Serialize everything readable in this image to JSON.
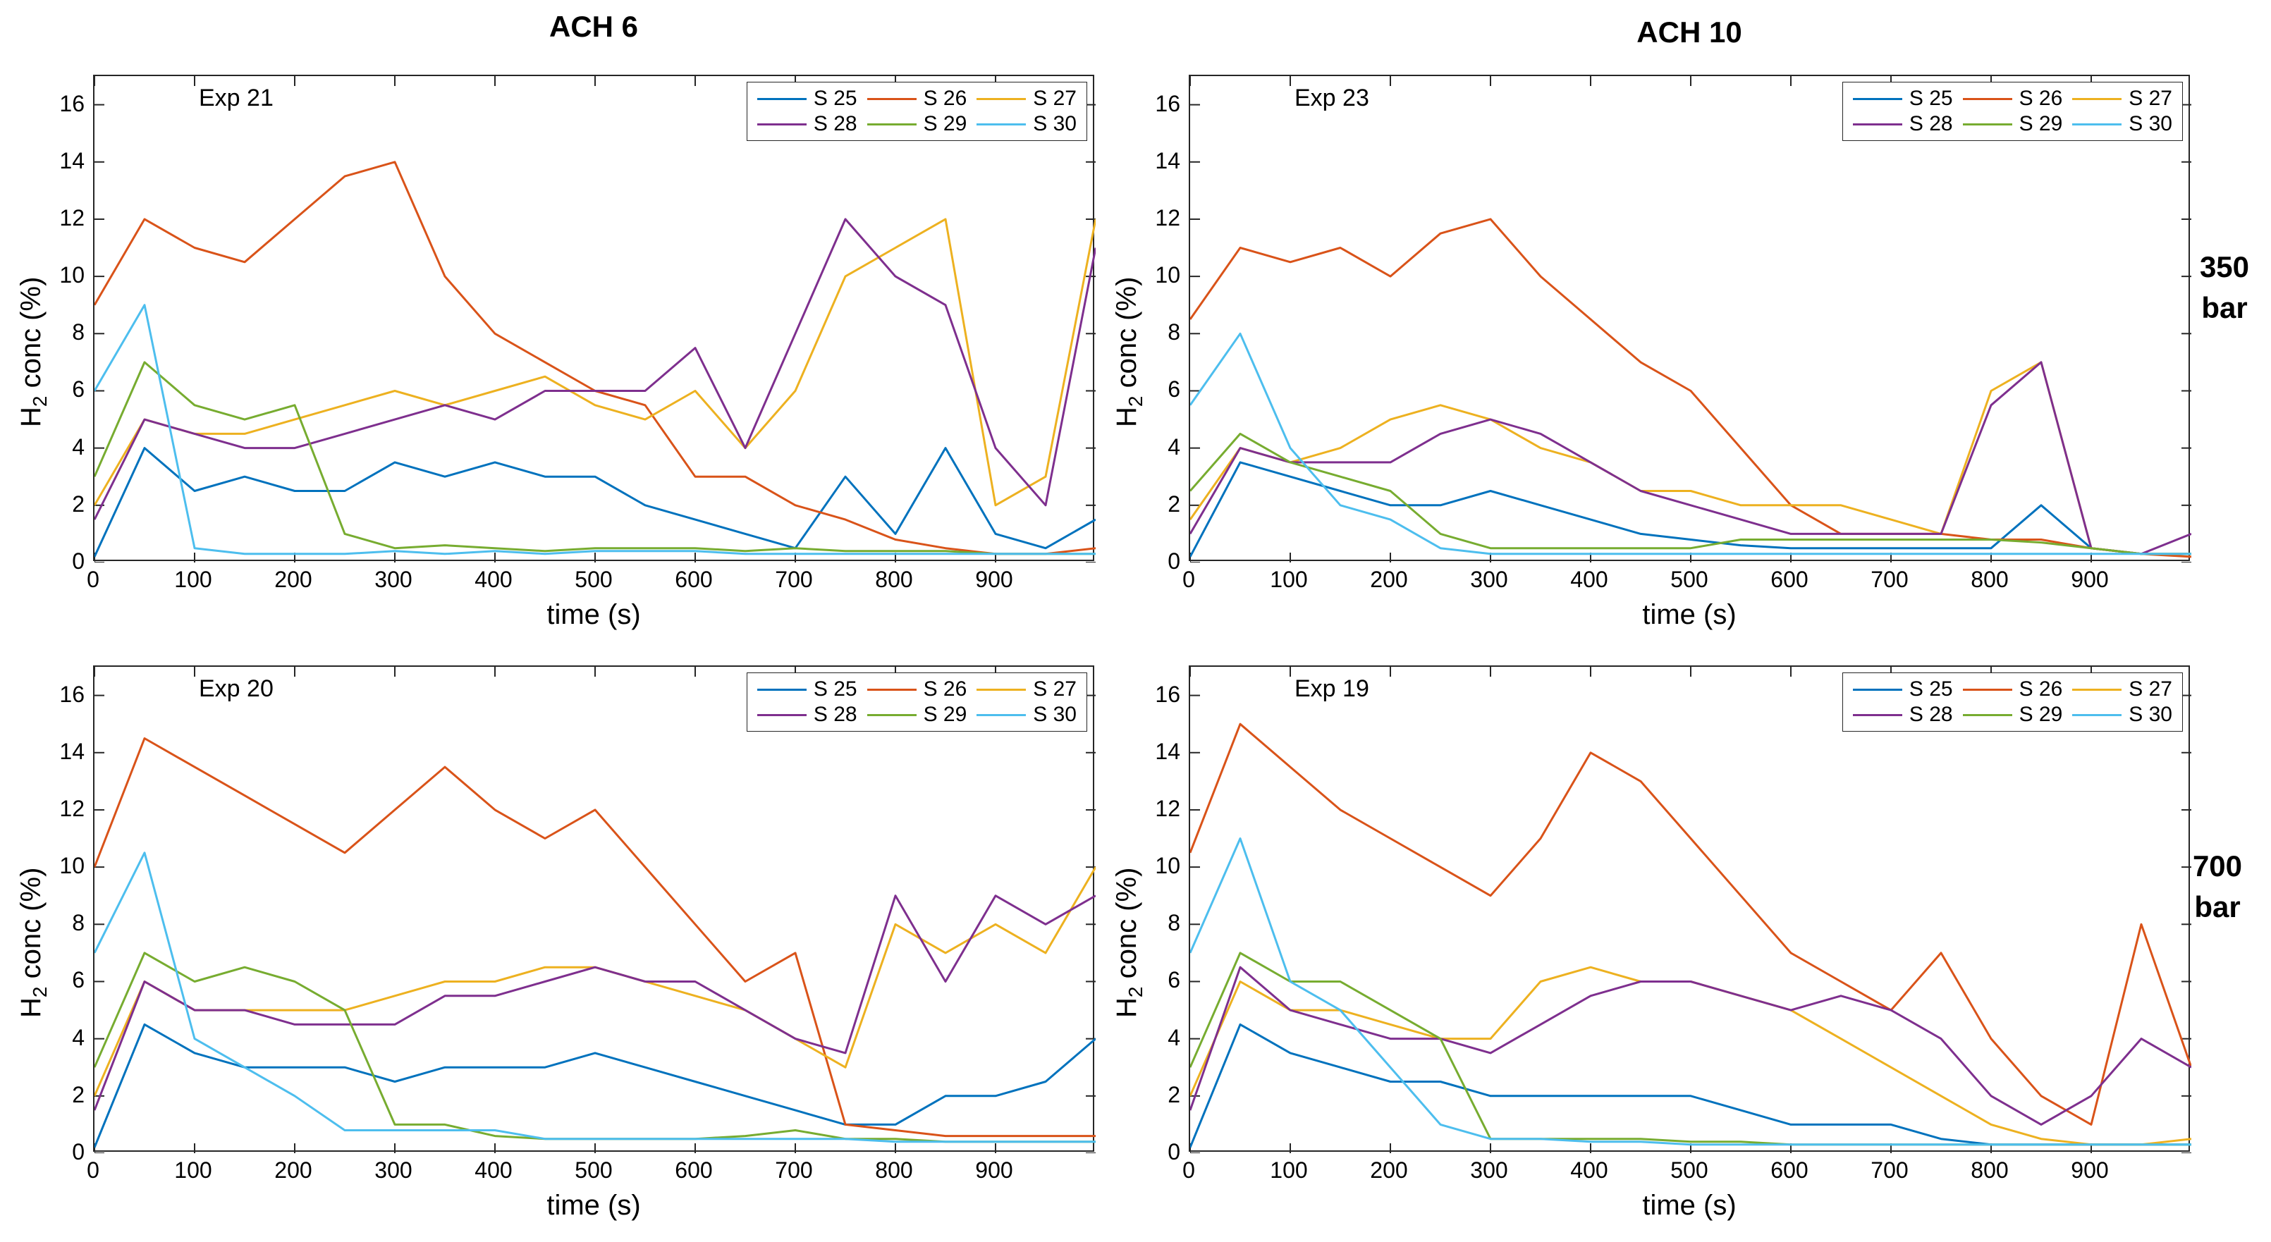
{
  "column_titles": [
    "ACH 6",
    "ACH 10"
  ],
  "row_titles": [
    [
      "350",
      "bar"
    ],
    [
      "700",
      "bar"
    ]
  ],
  "x_ticks": [
    "0",
    "100",
    "200",
    "300",
    "400",
    "500",
    "600",
    "700",
    "800",
    "900"
  ],
  "y_ticks": [
    "0",
    "2",
    "4",
    "6",
    "8",
    "10",
    "12",
    "14",
    "16"
  ],
  "xlabel": "time (s)",
  "ylabel_main": "H",
  "ylabel_sub": "2",
  "ylabel_rest": " conc (%)",
  "series_colors": {
    "S 25": "#0072BD",
    "S 26": "#D95319",
    "S 27": "#EDB120",
    "S 28": "#7E2F8E",
    "S 29": "#77AC30",
    "S 30": "#4DBEEE"
  },
  "chart_data": [
    {
      "type": "line",
      "panel": "top-left",
      "annotation": "Exp 21",
      "xlabel": "time (s)",
      "ylabel": "H2 conc (%)",
      "xlim": [
        0,
        1000
      ],
      "ylim": [
        0,
        17
      ],
      "legend": "top-right",
      "grid": false,
      "x": [
        0,
        50,
        100,
        150,
        200,
        250,
        300,
        350,
        400,
        450,
        500,
        550,
        600,
        650,
        700,
        750,
        800,
        850,
        900,
        950,
        1000
      ],
      "series": [
        {
          "name": "S 25",
          "values": [
            0.2,
            4.0,
            2.5,
            3.0,
            2.5,
            2.5,
            3.5,
            3.0,
            3.5,
            3.0,
            3.0,
            2.0,
            1.5,
            1.0,
            0.5,
            3.0,
            1.0,
            4.0,
            1.0,
            0.5,
            1.5
          ]
        },
        {
          "name": "S 26",
          "values": [
            9.0,
            12.0,
            11.0,
            10.5,
            12.0,
            13.5,
            14.0,
            10.0,
            8.0,
            7.0,
            6.0,
            5.5,
            3.0,
            3.0,
            2.0,
            1.5,
            0.8,
            0.5,
            0.3,
            0.3,
            0.5
          ]
        },
        {
          "name": "S 27",
          "values": [
            2.0,
            5.0,
            4.5,
            4.5,
            5.0,
            5.5,
            6.0,
            5.5,
            6.0,
            6.5,
            5.5,
            5.0,
            6.0,
            4.0,
            6.0,
            10.0,
            11.0,
            12.0,
            2.0,
            3.0,
            12.0
          ]
        },
        {
          "name": "S 28",
          "values": [
            1.5,
            5.0,
            4.5,
            4.0,
            4.0,
            4.5,
            5.0,
            5.5,
            5.0,
            6.0,
            6.0,
            6.0,
            7.5,
            4.0,
            8.0,
            12.0,
            10.0,
            9.0,
            4.0,
            2.0,
            11.0
          ]
        },
        {
          "name": "S 29",
          "values": [
            3.0,
            7.0,
            5.5,
            5.0,
            5.5,
            1.0,
            0.5,
            0.6,
            0.5,
            0.4,
            0.5,
            0.5,
            0.5,
            0.4,
            0.5,
            0.4,
            0.4,
            0.4,
            0.3,
            0.3,
            0.3
          ]
        },
        {
          "name": "S 30",
          "values": [
            6.0,
            9.0,
            0.5,
            0.3,
            0.3,
            0.3,
            0.4,
            0.3,
            0.4,
            0.3,
            0.4,
            0.4,
            0.4,
            0.3,
            0.3,
            0.3,
            0.3,
            0.3,
            0.3,
            0.3,
            0.3
          ]
        }
      ]
    },
    {
      "type": "line",
      "panel": "top-right",
      "annotation": "Exp 23",
      "xlabel": "time (s)",
      "ylabel": "H2 conc (%)",
      "xlim": [
        0,
        1000
      ],
      "ylim": [
        0,
        17
      ],
      "legend": "top-right",
      "grid": false,
      "x": [
        0,
        50,
        100,
        150,
        200,
        250,
        300,
        350,
        400,
        450,
        500,
        550,
        600,
        650,
        700,
        750,
        800,
        850,
        900,
        950,
        1000
      ],
      "series": [
        {
          "name": "S 25",
          "values": [
            0.2,
            3.5,
            3.0,
            2.5,
            2.0,
            2.0,
            2.5,
            2.0,
            1.5,
            1.0,
            0.8,
            0.6,
            0.5,
            0.5,
            0.5,
            0.5,
            0.5,
            2.0,
            0.5,
            0.3,
            0.3
          ]
        },
        {
          "name": "S 26",
          "values": [
            8.5,
            11.0,
            10.5,
            11.0,
            10.0,
            11.5,
            12.0,
            10.0,
            8.5,
            7.0,
            6.0,
            4.0,
            2.0,
            1.0,
            1.0,
            1.0,
            0.8,
            0.8,
            0.5,
            0.3,
            0.2
          ]
        },
        {
          "name": "S 27",
          "values": [
            1.5,
            4.0,
            3.5,
            4.0,
            5.0,
            5.5,
            5.0,
            4.0,
            3.5,
            2.5,
            2.5,
            2.0,
            2.0,
            2.0,
            1.5,
            1.0,
            6.0,
            7.0,
            0.5,
            0.3,
            0.3
          ]
        },
        {
          "name": "S 28",
          "values": [
            1.0,
            4.0,
            3.5,
            3.5,
            3.5,
            4.5,
            5.0,
            4.5,
            3.5,
            2.5,
            2.0,
            1.5,
            1.0,
            1.0,
            1.0,
            1.0,
            5.5,
            7.0,
            0.5,
            0.3,
            1.0
          ]
        },
        {
          "name": "S 29",
          "values": [
            2.5,
            4.5,
            3.5,
            3.0,
            2.5,
            1.0,
            0.5,
            0.5,
            0.5,
            0.5,
            0.5,
            0.8,
            0.8,
            0.8,
            0.8,
            0.8,
            0.8,
            0.7,
            0.5,
            0.3,
            0.3
          ]
        },
        {
          "name": "S 30",
          "values": [
            5.5,
            8.0,
            4.0,
            2.0,
            1.5,
            0.5,
            0.3,
            0.3,
            0.3,
            0.3,
            0.3,
            0.3,
            0.3,
            0.3,
            0.3,
            0.3,
            0.3,
            0.3,
            0.3,
            0.3,
            0.3
          ]
        }
      ]
    },
    {
      "type": "line",
      "panel": "bottom-left",
      "annotation": "Exp 20",
      "xlabel": "time (s)",
      "ylabel": "H2 conc (%)",
      "xlim": [
        0,
        1000
      ],
      "ylim": [
        0,
        17
      ],
      "legend": "top-right",
      "grid": false,
      "x": [
        0,
        50,
        100,
        150,
        200,
        250,
        300,
        350,
        400,
        450,
        500,
        550,
        600,
        650,
        700,
        750,
        800,
        850,
        900,
        950,
        1000
      ],
      "series": [
        {
          "name": "S 25",
          "values": [
            0.2,
            4.5,
            3.5,
            3.0,
            3.0,
            3.0,
            2.5,
            3.0,
            3.0,
            3.0,
            3.5,
            3.0,
            2.5,
            2.0,
            1.5,
            1.0,
            1.0,
            2.0,
            2.0,
            2.5,
            4.0
          ]
        },
        {
          "name": "S 26",
          "values": [
            10.0,
            14.5,
            13.5,
            12.5,
            11.5,
            10.5,
            12.0,
            13.5,
            12.0,
            11.0,
            12.0,
            10.0,
            8.0,
            6.0,
            7.0,
            1.0,
            0.8,
            0.6,
            0.6,
            0.6,
            0.6
          ]
        },
        {
          "name": "S 27",
          "values": [
            2.0,
            6.0,
            5.0,
            5.0,
            5.0,
            5.0,
            5.5,
            6.0,
            6.0,
            6.5,
            6.5,
            6.0,
            5.5,
            5.0,
            4.0,
            3.0,
            8.0,
            7.0,
            8.0,
            7.0,
            10.0
          ]
        },
        {
          "name": "S 28",
          "values": [
            1.5,
            6.0,
            5.0,
            5.0,
            4.5,
            4.5,
            4.5,
            5.5,
            5.5,
            6.0,
            6.5,
            6.0,
            6.0,
            5.0,
            4.0,
            3.5,
            9.0,
            6.0,
            9.0,
            8.0,
            9.0
          ]
        },
        {
          "name": "S 29",
          "values": [
            3.0,
            7.0,
            6.0,
            6.5,
            6.0,
            5.0,
            1.0,
            1.0,
            0.6,
            0.5,
            0.5,
            0.5,
            0.5,
            0.6,
            0.8,
            0.5,
            0.5,
            0.4,
            0.4,
            0.4,
            0.4
          ]
        },
        {
          "name": "S 30",
          "values": [
            7.0,
            10.5,
            4.0,
            3.0,
            2.0,
            0.8,
            0.8,
            0.8,
            0.8,
            0.5,
            0.5,
            0.5,
            0.5,
            0.5,
            0.5,
            0.5,
            0.4,
            0.4,
            0.4,
            0.4,
            0.4
          ]
        }
      ]
    },
    {
      "type": "line",
      "panel": "bottom-right",
      "annotation": "Exp 19",
      "xlabel": "time (s)",
      "ylabel": "H2 conc (%)",
      "xlim": [
        0,
        1000
      ],
      "ylim": [
        0,
        17
      ],
      "legend": "top-right",
      "grid": false,
      "x": [
        0,
        50,
        100,
        150,
        200,
        250,
        300,
        350,
        400,
        450,
        500,
        550,
        600,
        650,
        700,
        750,
        800,
        850,
        900,
        950,
        1000
      ],
      "series": [
        {
          "name": "S 25",
          "values": [
            0.2,
            4.5,
            3.5,
            3.0,
            2.5,
            2.5,
            2.0,
            2.0,
            2.0,
            2.0,
            2.0,
            1.5,
            1.0,
            1.0,
            1.0,
            0.5,
            0.3,
            0.3,
            0.3,
            0.3,
            0.3
          ]
        },
        {
          "name": "S 26",
          "values": [
            10.5,
            15.0,
            13.5,
            12.0,
            11.0,
            10.0,
            9.0,
            11.0,
            14.0,
            13.0,
            11.0,
            9.0,
            7.0,
            6.0,
            5.0,
            7.0,
            4.0,
            2.0,
            1.0,
            8.0,
            3.0
          ]
        },
        {
          "name": "S 27",
          "values": [
            2.0,
            6.0,
            5.0,
            5.0,
            4.5,
            4.0,
            4.0,
            6.0,
            6.5,
            6.0,
            6.0,
            5.5,
            5.0,
            4.0,
            3.0,
            2.0,
            1.0,
            0.5,
            0.3,
            0.3,
            0.5
          ]
        },
        {
          "name": "S 28",
          "values": [
            1.5,
            6.5,
            5.0,
            4.5,
            4.0,
            4.0,
            3.5,
            4.5,
            5.5,
            6.0,
            6.0,
            5.5,
            5.0,
            5.5,
            5.0,
            4.0,
            2.0,
            1.0,
            2.0,
            4.0,
            3.0
          ]
        },
        {
          "name": "S 29",
          "values": [
            3.0,
            7.0,
            6.0,
            6.0,
            5.0,
            4.0,
            0.5,
            0.5,
            0.5,
            0.5,
            0.4,
            0.4,
            0.3,
            0.3,
            0.3,
            0.3,
            0.3,
            0.3,
            0.3,
            0.3,
            0.3
          ]
        },
        {
          "name": "S 30",
          "values": [
            7.0,
            11.0,
            6.0,
            5.0,
            3.0,
            1.0,
            0.5,
            0.5,
            0.4,
            0.4,
            0.3,
            0.3,
            0.3,
            0.3,
            0.3,
            0.3,
            0.3,
            0.3,
            0.3,
            0.3,
            0.3
          ]
        }
      ]
    }
  ]
}
